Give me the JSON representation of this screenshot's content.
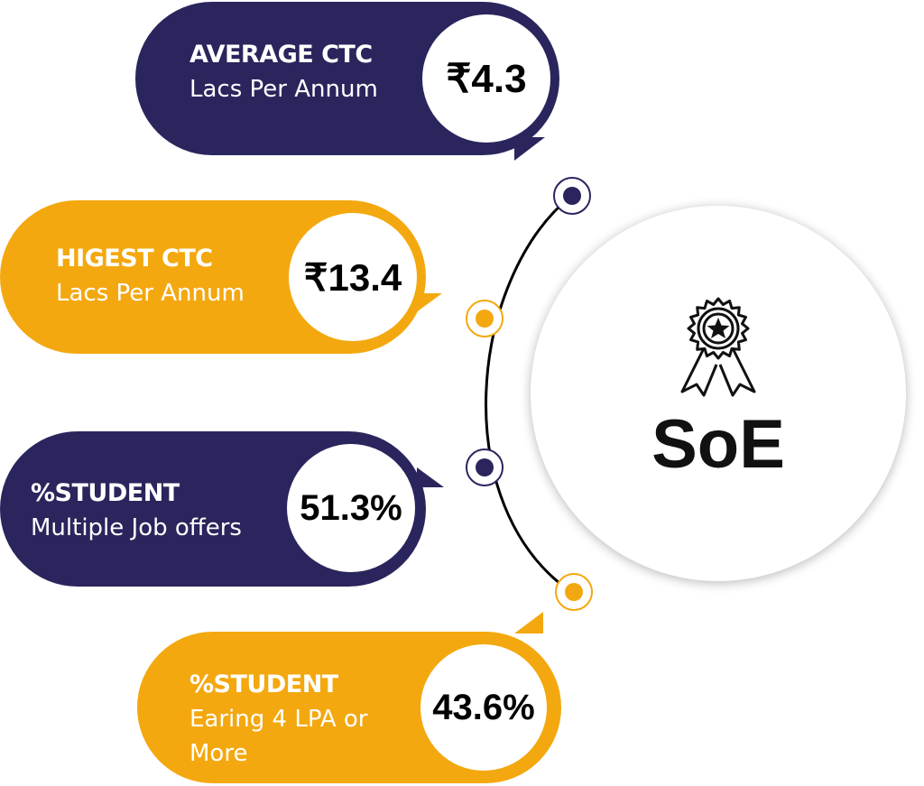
{
  "center": {
    "label": "SoE",
    "icon": "award-ribbon-icon"
  },
  "stats": [
    {
      "heading": "AVERAGE CTC",
      "sub": "Lacs Per Annum",
      "value": "₹4.3",
      "color": "#2a255c"
    },
    {
      "heading": "HIGEST CTC",
      "sub": "Lacs Per Annum",
      "value": "₹13.4",
      "color": "#f4a80f"
    },
    {
      "heading": "%STUDENT",
      "sub": "Multiple Job offers",
      "value": "51.3%",
      "color": "#2a255c"
    },
    {
      "heading": "%STUDENT",
      "sub_lines": [
        "Earing 4 LPA or",
        "More"
      ],
      "value": "43.6%",
      "color": "#f4a80f"
    }
  ]
}
